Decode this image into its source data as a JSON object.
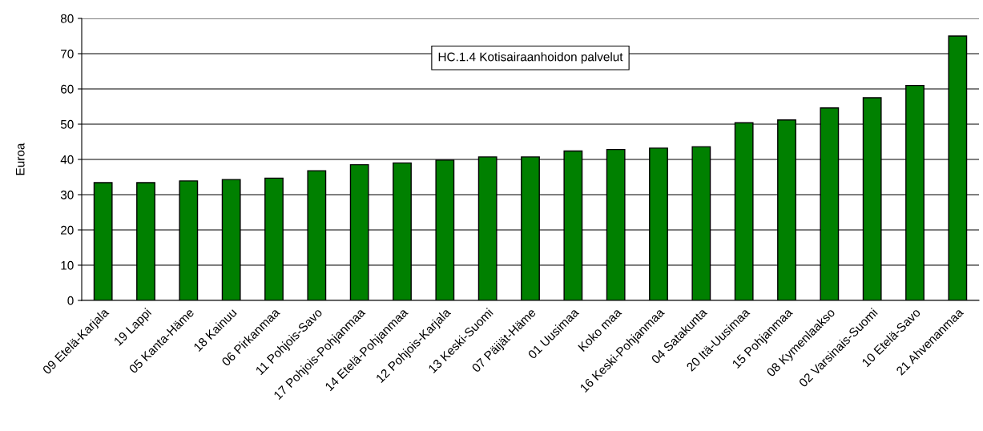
{
  "chart_data": {
    "type": "bar",
    "ylabel": "Euroa",
    "annotations": [
      "HC.1.4 Kotisairaanhoidon palvelut"
    ],
    "categories": [
      "09 Etelä-Karjala",
      "19 Lappi",
      "05 Kanta-Häme",
      "18 Kainuu",
      "06 Pirkanmaa",
      "11 Pohjois-Savo",
      "17 Pohjois-Pohjanmaa",
      "14 Etelä-Pohjanmaa",
      "12 Pohjois-Karjala",
      "13 Keski-Suomi",
      "07 Päijät-Häme",
      "01 Uusimaa",
      "Koko maa",
      "16 Keski-Pohjanmaa",
      "04 Satakunta",
      "20 Itä-Uusimaa",
      "15 Pohjanmaa",
      "08 Kymenlaakso",
      "02 Varsinais-Suomi",
      "10 Etelä-Savo",
      "21 Ahvenanmaa"
    ],
    "values": [
      33.4,
      33.4,
      33.9,
      34.3,
      34.7,
      36.8,
      38.5,
      39.0,
      39.8,
      40.7,
      40.7,
      42.4,
      42.8,
      43.2,
      43.6,
      50.4,
      51.2,
      54.6,
      57.5,
      61.0,
      75.0
    ],
    "color": "#008000",
    "ylim": [
      0,
      80
    ],
    "yticks": [
      0,
      10,
      20,
      30,
      40,
      50,
      60,
      70,
      80
    ],
    "grid": "y",
    "legend": false
  }
}
